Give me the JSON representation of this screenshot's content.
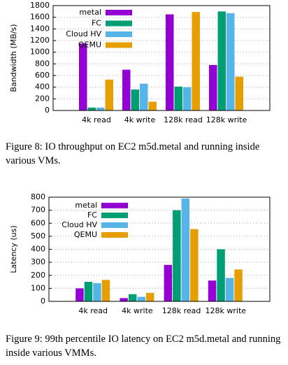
{
  "chart_data": [
    {
      "type": "bar",
      "ylabel": "Bandwidth (MB/s)",
      "categories": [
        "4k read",
        "4k write",
        "128k read",
        "128k write"
      ],
      "series": [
        {
          "name": "metal",
          "color": "#9400d3",
          "values": [
            1150,
            700,
            1650,
            780
          ]
        },
        {
          "name": "FC",
          "color": "#009e73",
          "values": [
            50,
            360,
            410,
            1700
          ]
        },
        {
          "name": "Cloud HV",
          "color": "#56b4e9",
          "values": [
            50,
            460,
            400,
            1670
          ]
        },
        {
          "name": "QEMU",
          "color": "#e69f00",
          "values": [
            530,
            150,
            1690,
            580
          ]
        }
      ],
      "ylim": [
        0,
        1800
      ],
      "yticks": [
        0,
        200,
        400,
        600,
        800,
        1000,
        1200,
        1400,
        1600,
        1800
      ],
      "grid": true,
      "legend": "top-left",
      "caption": "Figure 8: IO throughput on EC2 m5d.metal and running inside various VMs."
    },
    {
      "type": "bar",
      "ylabel": "Latency (us)",
      "categories": [
        "4k read",
        "4k write",
        "128k read",
        "128k write"
      ],
      "series": [
        {
          "name": "metal",
          "color": "#9400d3",
          "values": [
            100,
            25,
            280,
            160
          ]
        },
        {
          "name": "FC",
          "color": "#009e73",
          "values": [
            150,
            55,
            700,
            400
          ]
        },
        {
          "name": "Cloud HV",
          "color": "#56b4e9",
          "values": [
            140,
            35,
            790,
            180
          ]
        },
        {
          "name": "QEMU",
          "color": "#e69f00",
          "values": [
            165,
            65,
            555,
            245
          ]
        }
      ],
      "ylim": [
        0,
        800
      ],
      "yticks": [
        0,
        100,
        200,
        300,
        400,
        500,
        600,
        700,
        800
      ],
      "grid": true,
      "legend": "top-left",
      "caption": "Figure 9: 99th percentile IO latency on EC2 m5d.metal and running inside various VMMs."
    }
  ]
}
